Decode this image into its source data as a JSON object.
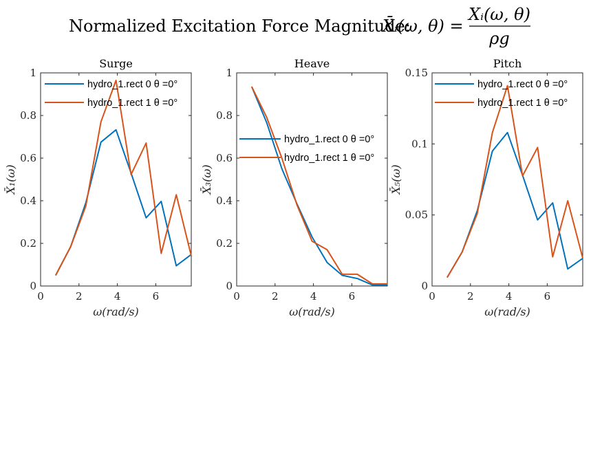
{
  "figure": {
    "title_prefix": "Normalized Excitation Force Magnitude:",
    "title_lhs": "X̄ᵢ(ω, θ) =",
    "title_numerator": "Xᵢ(ω, θ)",
    "title_denominator": "ρg"
  },
  "colors": {
    "series1": "#0072BD",
    "series2": "#D95319"
  },
  "chart_data": [
    {
      "type": "line",
      "title": "Surge",
      "xlabel": "ω(rad/s)",
      "ylabel": "X̄₁(ω)",
      "xlim": [
        0,
        7.85
      ],
      "ylim": [
        0,
        1
      ],
      "xticks": [
        0,
        2,
        4,
        6
      ],
      "xtick_labels": [
        "0",
        "2",
        "4",
        "6"
      ],
      "yticks": [
        0,
        0.2,
        0.4,
        0.6,
        0.8,
        1
      ],
      "ytick_labels": [
        "0",
        "0.2",
        "0.4",
        "0.6",
        "0.8",
        "1"
      ],
      "legend_position": "top-left",
      "x": [
        0.785,
        1.571,
        2.356,
        3.142,
        3.927,
        4.712,
        5.498,
        6.283,
        7.069,
        7.854
      ],
      "series": [
        {
          "name": "hydro_1.rect 0 θ =0°",
          "values": [
            0.05,
            0.185,
            0.39,
            0.675,
            0.733,
            0.53,
            0.32,
            0.397,
            0.095,
            0.148
          ]
        },
        {
          "name": "hydro_1.rect 1 θ =0°",
          "values": [
            0.05,
            0.185,
            0.375,
            0.77,
            0.965,
            0.523,
            0.671,
            0.153,
            0.428,
            0.14
          ]
        }
      ]
    },
    {
      "type": "line",
      "title": "Heave",
      "xlabel": "ω(rad/s)",
      "ylabel": "X̄₃(ω)",
      "xlim": [
        0,
        7.85
      ],
      "ylim": [
        0,
        1
      ],
      "xticks": [
        0,
        2,
        4,
        6
      ],
      "xtick_labels": [
        "0",
        "2",
        "4",
        "6"
      ],
      "yticks": [
        0,
        0.2,
        0.4,
        0.6,
        0.8,
        1
      ],
      "ytick_labels": [
        "0",
        "0.2",
        "0.4",
        "0.6",
        "0.8",
        "1"
      ],
      "legend_position": "middle-right",
      "x": [
        0.785,
        1.571,
        2.356,
        3.142,
        3.927,
        4.712,
        5.498,
        6.283,
        7.069,
        7.854
      ],
      "series": [
        {
          "name": "hydro_1.rect 0 θ =0°",
          "values": [
            0.935,
            0.765,
            0.55,
            0.385,
            0.23,
            0.11,
            0.05,
            0.035,
            0.005,
            0.005
          ]
        },
        {
          "name": "hydro_1.rect 1 θ =0°",
          "values": [
            0.935,
            0.79,
            0.6,
            0.38,
            0.21,
            0.17,
            0.055,
            0.055,
            0.01,
            0.01
          ]
        }
      ]
    },
    {
      "type": "line",
      "title": "Pitch",
      "xlabel": "ω(rad/s)",
      "ylabel": "X̄₅(ω)",
      "xlim": [
        0,
        7.85
      ],
      "ylim": [
        0,
        0.15
      ],
      "xticks": [
        0,
        2,
        4,
        6
      ],
      "xtick_labels": [
        "0",
        "2",
        "4",
        "6"
      ],
      "yticks": [
        0,
        0.05,
        0.1,
        0.15
      ],
      "ytick_labels": [
        "0",
        "0.05",
        "0.1",
        "0.15"
      ],
      "legend_position": "top-left",
      "x": [
        0.785,
        1.571,
        2.356,
        3.142,
        3.927,
        4.712,
        5.498,
        6.283,
        7.069,
        7.854
      ],
      "series": [
        {
          "name": "hydro_1.rect 0 θ =0°",
          "values": [
            0.006,
            0.024,
            0.053,
            0.095,
            0.108,
            0.078,
            0.0465,
            0.0585,
            0.012,
            0.0195
          ]
        },
        {
          "name": "hydro_1.rect 1 θ =0°",
          "values": [
            0.006,
            0.024,
            0.051,
            0.108,
            0.141,
            0.0775,
            0.0975,
            0.0205,
            0.06,
            0.0195
          ]
        }
      ]
    }
  ]
}
